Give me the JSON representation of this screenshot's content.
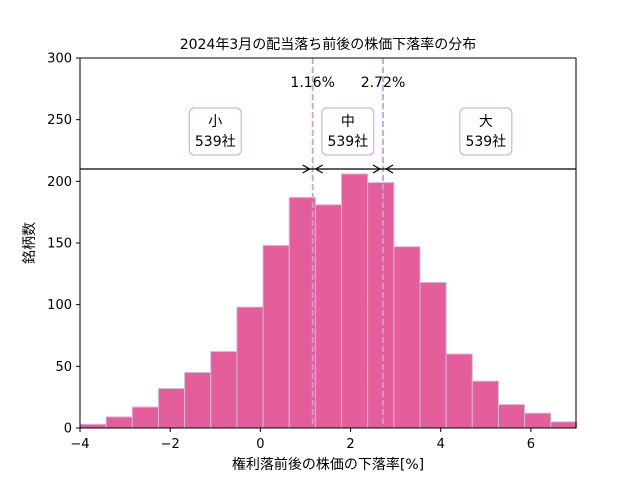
{
  "chart_data": {
    "type": "bar",
    "title": "2024年3月の配当落ち前後の株価下落率の分布",
    "xlabel": "権利落前後の株価の下落率[%]",
    "ylabel": "銘柄数",
    "xlim": [
      -4,
      7
    ],
    "ylim": [
      0,
      300
    ],
    "x_ticks": [
      -4,
      -2,
      0,
      2,
      4,
      6
    ],
    "y_ticks": [
      0,
      50,
      100,
      150,
      200,
      250,
      300
    ],
    "bin_width": 0.58,
    "bins": [
      {
        "x0": -4.0,
        "value": 3
      },
      {
        "x0": -3.42,
        "value": 9
      },
      {
        "x0": -2.84,
        "value": 17
      },
      {
        "x0": -2.26,
        "value": 32
      },
      {
        "x0": -1.68,
        "value": 45
      },
      {
        "x0": -1.1,
        "value": 62
      },
      {
        "x0": -0.52,
        "value": 98
      },
      {
        "x0": 0.06,
        "value": 148
      },
      {
        "x0": 0.64,
        "value": 187
      },
      {
        "x0": 1.22,
        "value": 181
      },
      {
        "x0": 1.8,
        "value": 206
      },
      {
        "x0": 2.38,
        "value": 199
      },
      {
        "x0": 2.96,
        "value": 147
      },
      {
        "x0": 3.54,
        "value": 118
      },
      {
        "x0": 4.12,
        "value": 60
      },
      {
        "x0": 4.7,
        "value": 38
      },
      {
        "x0": 5.28,
        "value": 19
      },
      {
        "x0": 5.86,
        "value": 12
      },
      {
        "x0": 6.44,
        "value": 5
      }
    ],
    "thresholds": [
      {
        "x": 1.16,
        "label": "1.16%"
      },
      {
        "x": 2.72,
        "label": "2.72%"
      }
    ],
    "divider_y": 210,
    "groups": [
      {
        "name": "小",
        "count": "539社",
        "x": -1.0
      },
      {
        "name": "中",
        "count": "539社",
        "x": 1.94
      },
      {
        "name": "大",
        "count": "539社",
        "x": 5.0
      }
    ],
    "colors": {
      "bar_fill": "#e45e9a",
      "bar_edge": "#d6b6e0",
      "threshold_line": "#c9a0dc",
      "box_edge": "#c9a0dc"
    }
  }
}
